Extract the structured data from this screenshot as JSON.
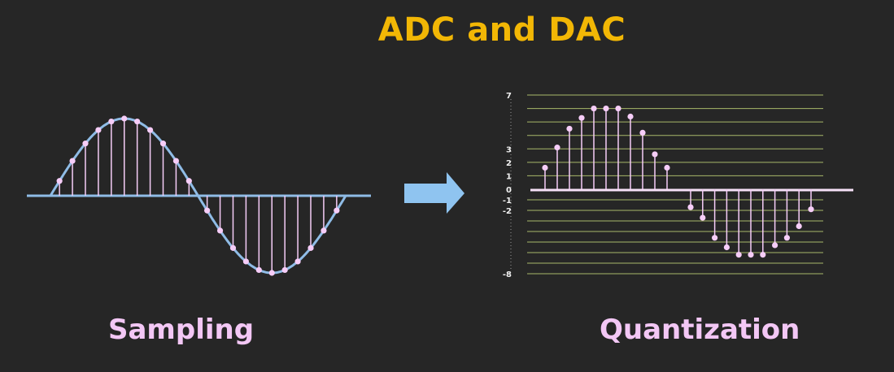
{
  "title": "ADC and DAC",
  "captions": {
    "left": "Sampling",
    "right": "Quantization"
  },
  "colors": {
    "title": "#f2b705",
    "caption": "#f3c7f5",
    "wave": "#8fbce6",
    "sample": "#f6cdf8",
    "grid": "#a8b86a",
    "arrow": "#8fc4f0"
  },
  "arrow_icon": "right-arrow-icon",
  "sampling": {
    "cycles": 1,
    "samples_per_half": 11
  },
  "quantization": {
    "levels": {
      "max": 7,
      "min": -8
    },
    "tick_labels": [
      "7",
      "3",
      "2",
      "1",
      "0",
      "-1",
      "-2",
      "-8"
    ],
    "positive_samples": [
      1.6,
      3.1,
      4.5,
      5.3,
      6.0,
      6.0,
      6.0,
      5.4,
      4.2,
      2.6,
      1.6
    ],
    "negative_samples": [
      -1.7,
      -2.7,
      -4.6,
      -5.5,
      -6.2,
      -6.2,
      -6.2,
      -5.3,
      -4.6,
      -3.5,
      -1.9
    ]
  }
}
